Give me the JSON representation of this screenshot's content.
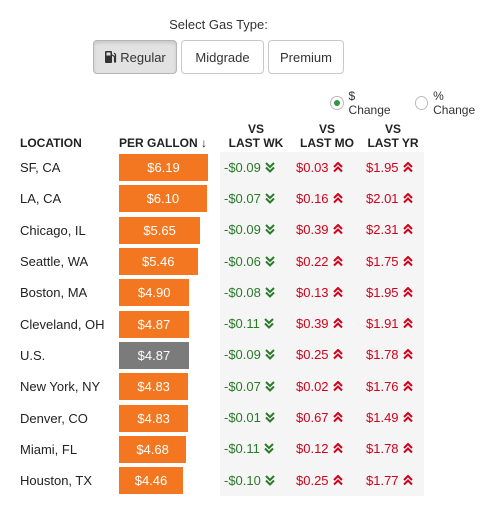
{
  "select_label": "Select Gas Type:",
  "gas_types": [
    {
      "label": "Regular",
      "active": true
    },
    {
      "label": "Midgrade",
      "active": false
    },
    {
      "label": "Premium",
      "active": false
    }
  ],
  "change_modes": [
    {
      "label": "$ Change",
      "checked": true
    },
    {
      "label": "% Change",
      "checked": false
    }
  ],
  "columns": {
    "location": "LOCATION",
    "per_gallon": "PER GALLON ↓",
    "week": [
      "VS",
      "LAST WK"
    ],
    "month": [
      "VS",
      "LAST MO"
    ],
    "year": [
      "VS",
      "LAST YR"
    ]
  },
  "colors": {
    "bar": "#f37721",
    "national_bar": "#7b7b7b",
    "down": "#2a7a2a",
    "up": "#d0021b"
  },
  "icons": {
    "pump": "gas-pump-icon",
    "down": "double-chevron-down-icon",
    "up": "double-chevron-up-icon"
  },
  "max_price": 6.19,
  "rows": [
    {
      "location": "SF, CA",
      "price": "$6.19",
      "value": 6.19,
      "national": false,
      "wk": "-$0.09",
      "wk_dir": "down",
      "mo": "$0.03",
      "mo_dir": "up",
      "yr": "$1.95",
      "yr_dir": "up"
    },
    {
      "location": "LA, CA",
      "price": "$6.10",
      "value": 6.1,
      "national": false,
      "wk": "-$0.07",
      "wk_dir": "down",
      "mo": "$0.16",
      "mo_dir": "up",
      "yr": "$2.01",
      "yr_dir": "up"
    },
    {
      "location": "Chicago, IL",
      "price": "$5.65",
      "value": 5.65,
      "national": false,
      "wk": "-$0.09",
      "wk_dir": "down",
      "mo": "$0.39",
      "mo_dir": "up",
      "yr": "$2.31",
      "yr_dir": "up"
    },
    {
      "location": "Seattle, WA",
      "price": "$5.46",
      "value": 5.46,
      "national": false,
      "wk": "-$0.06",
      "wk_dir": "down",
      "mo": "$0.22",
      "mo_dir": "up",
      "yr": "$1.75",
      "yr_dir": "up"
    },
    {
      "location": "Boston, MA",
      "price": "$4.90",
      "value": 4.9,
      "national": false,
      "wk": "-$0.08",
      "wk_dir": "down",
      "mo": "$0.13",
      "mo_dir": "up",
      "yr": "$1.95",
      "yr_dir": "up"
    },
    {
      "location": "Cleveland, OH",
      "price": "$4.87",
      "value": 4.87,
      "national": false,
      "wk": "-$0.11",
      "wk_dir": "down",
      "mo": "$0.39",
      "mo_dir": "up",
      "yr": "$1.91",
      "yr_dir": "up"
    },
    {
      "location": "U.S.",
      "price": "$4.87",
      "value": 4.87,
      "national": true,
      "wk": "-$0.09",
      "wk_dir": "down",
      "mo": "$0.25",
      "mo_dir": "up",
      "yr": "$1.78",
      "yr_dir": "up"
    },
    {
      "location": "New York, NY",
      "price": "$4.83",
      "value": 4.83,
      "national": false,
      "wk": "-$0.07",
      "wk_dir": "down",
      "mo": "$0.02",
      "mo_dir": "up",
      "yr": "$1.76",
      "yr_dir": "up"
    },
    {
      "location": "Denver, CO",
      "price": "$4.83",
      "value": 4.83,
      "national": false,
      "wk": "-$0.01",
      "wk_dir": "down",
      "mo": "$0.67",
      "mo_dir": "up",
      "yr": "$1.49",
      "yr_dir": "up"
    },
    {
      "location": "Miami, FL",
      "price": "$4.68",
      "value": 4.68,
      "national": false,
      "wk": "-$0.11",
      "wk_dir": "down",
      "mo": "$0.12",
      "mo_dir": "up",
      "yr": "$1.78",
      "yr_dir": "up"
    },
    {
      "location": "Houston, TX",
      "price": "$4.46",
      "value": 4.46,
      "national": false,
      "wk": "-$0.10",
      "wk_dir": "down",
      "mo": "$0.25",
      "mo_dir": "up",
      "yr": "$1.77",
      "yr_dir": "up"
    }
  ]
}
